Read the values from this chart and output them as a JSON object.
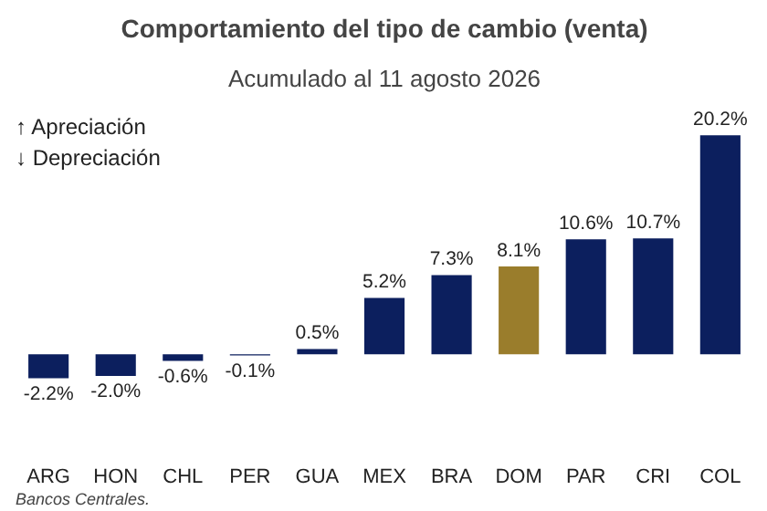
{
  "chart_data": {
    "type": "bar",
    "title": "Comportamiento del tipo de cambio (venta)",
    "subtitle": "Acumulado al 11 agosto 2026",
    "categories": [
      "ARG",
      "HON",
      "CHL",
      "PER",
      "GUA",
      "MEX",
      "BRA",
      "DOM",
      "PAR",
      "CRI",
      "COL"
    ],
    "values": [
      -2.2,
      -2.0,
      -0.6,
      -0.1,
      0.5,
      5.2,
      7.3,
      8.1,
      10.6,
      10.7,
      20.2
    ],
    "colors": [
      "#0c1f5e",
      "#0c1f5e",
      "#0c1f5e",
      "#0c1f5e",
      "#0c1f5e",
      "#0c1f5e",
      "#0c1f5e",
      "#9a7d2c",
      "#0c1f5e",
      "#0c1f5e",
      "#0c1f5e"
    ],
    "value_labels": [
      "-2.2%",
      "-2.0%",
      "-0.6%",
      "-0.1%",
      "0.5%",
      "5.2%",
      "7.3%",
      "8.1%",
      "10.6%",
      "10.7%",
      "20.2%"
    ],
    "annotations": [
      "↑ Apreciación",
      "↓ Depreciación",
      "Bancos Centrales."
    ],
    "grid": false
  }
}
